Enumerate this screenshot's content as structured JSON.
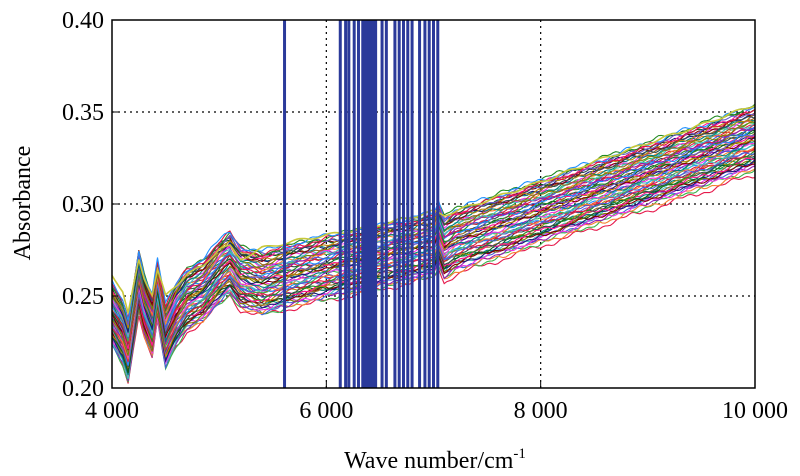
{
  "chart_data": {
    "type": "line",
    "title": "",
    "xlabel": "Wave number/cm",
    "xlabel_superscript": "-1",
    "ylabel": "Absorbance",
    "xlim": [
      4000,
      10000
    ],
    "ylim": [
      0.2,
      0.4
    ],
    "grid": true,
    "legend": "none",
    "x_ticks": [
      4000,
      6000,
      8000,
      10000
    ],
    "x_tick_labels": [
      "4 000",
      "6 000",
      "8 000",
      "10 000"
    ],
    "y_ticks": [
      0.2,
      0.25,
      0.3,
      0.35,
      0.4
    ],
    "y_tick_labels": [
      "0.20",
      "0.25",
      "0.30",
      "0.35",
      "0.40"
    ],
    "spectra_count": 60,
    "baseline_spectrum": {
      "x": [
        4000,
        4100,
        4150,
        4250,
        4300,
        4380,
        4420,
        4500,
        4600,
        4700,
        4850,
        5000,
        5100,
        5200,
        5400,
        5800,
        6200,
        6600,
        7000,
        7050,
        7100,
        7200,
        7600,
        8000,
        8500,
        9000,
        9500,
        10000
      ],
      "y": [
        0.235,
        0.225,
        0.215,
        0.253,
        0.24,
        0.228,
        0.25,
        0.223,
        0.235,
        0.243,
        0.248,
        0.258,
        0.263,
        0.255,
        0.252,
        0.258,
        0.263,
        0.268,
        0.273,
        0.279,
        0.271,
        0.275,
        0.283,
        0.291,
        0.301,
        0.311,
        0.321,
        0.331
      ]
    },
    "offset_range": [
      -0.012,
      0.022
    ],
    "highlight_spectrum": {
      "x": [
        4000,
        4100,
        4150,
        4250,
        4300,
        4380,
        4420,
        4500,
        4600,
        4700,
        4850,
        5000,
        5100,
        5200,
        5400,
        5800,
        6200,
        6600,
        7000,
        7100,
        7600,
        8000,
        8500,
        9000,
        9500,
        10000
      ],
      "y": [
        0.262,
        0.252,
        0.24,
        0.27,
        0.26,
        0.25,
        0.265,
        0.25,
        0.256,
        0.262,
        0.266,
        0.276,
        0.277,
        0.27,
        0.276,
        0.281,
        0.285,
        0.29,
        0.296,
        0.294,
        0.304,
        0.312,
        0.323,
        0.333,
        0.343,
        0.354
      ],
      "color": "#c8c83a"
    },
    "selected_wavenumbers": [
      5610,
      6130,
      6180,
      6210,
      6260,
      6300,
      6340,
      6360,
      6380,
      6390,
      6400,
      6410,
      6420,
      6430,
      6440,
      6460,
      6520,
      6560,
      6640,
      6680,
      6720,
      6760,
      6800,
      6870,
      6920,
      6960,
      7000,
      7040
    ],
    "selected_line_color": "#2b3a9a",
    "series_colors": [
      "#e6194b",
      "#3cb44b",
      "#4363d8",
      "#f58231",
      "#911eb4",
      "#46c0c0",
      "#f032e6",
      "#7f7f00",
      "#008080",
      "#1a1a7a",
      "#9a6324",
      "#800000",
      "#0b5d1e",
      "#b8860b",
      "#ff1493",
      "#2f4f4f",
      "#6a5acd",
      "#228b22",
      "#dc143c",
      "#1e90ff"
    ]
  }
}
